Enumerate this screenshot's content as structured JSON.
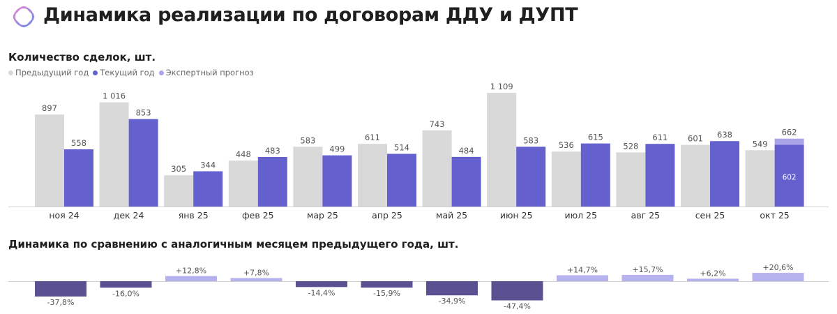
{
  "header": {
    "title": "Динамика реализации по договорам ДДУ и ДУПТ"
  },
  "colors": {
    "previous": "#d9d9d9",
    "current": "#6461cf",
    "forecast": "#a9a5e8",
    "negative": "#5b5092",
    "positive": "#b6b2ee",
    "label": "#555555"
  },
  "chart_data": [
    {
      "type": "bar",
      "title": "Количество сделок, шт.",
      "legend": [
        {
          "name": "Предыдущий год",
          "color": "#d9d9d9"
        },
        {
          "name": "Текущий год",
          "color": "#6461cf"
        },
        {
          "name": "Экспертный прогноз",
          "color": "#a9a5e8"
        }
      ],
      "categories": [
        "ноя 24",
        "дек 24",
        "янв 25",
        "фев 25",
        "мар 25",
        "апр 25",
        "май 25",
        "июн 25",
        "июл 25",
        "авг 25",
        "сен 25",
        "окт 25"
      ],
      "series": [
        {
          "name": "Предыдущий год",
          "values": [
            897,
            1016,
            305,
            448,
            583,
            611,
            743,
            1109,
            536,
            528,
            601,
            549
          ],
          "labels": [
            "897",
            "1 016",
            "305",
            "448",
            "583",
            "611",
            "743",
            "1 109",
            "536",
            "528",
            "601",
            "549"
          ]
        },
        {
          "name": "Текущий год",
          "values": [
            558,
            853,
            344,
            483,
            499,
            514,
            484,
            583,
            615,
            611,
            638,
            602
          ],
          "labels": [
            "558",
            "853",
            "344",
            "483",
            "499",
            "514",
            "484",
            "583",
            "615",
            "611",
            "638",
            "602"
          ]
        },
        {
          "name": "Экспертный прогноз",
          "values": [
            null,
            null,
            null,
            null,
            null,
            null,
            null,
            null,
            null,
            null,
            null,
            662
          ],
          "labels": [
            "",
            "",
            "",
            "",
            "",
            "",
            "",
            "",
            "",
            "",
            "",
            "662"
          ]
        }
      ],
      "ylim": [
        0,
        1109
      ]
    },
    {
      "type": "bar",
      "title": "Динамика по сравнению с аналогичным месяцем предыдущего года, шт.",
      "categories": [
        "ноя 24",
        "дек 24",
        "янв 25",
        "фев 25",
        "мар 25",
        "апр 25",
        "май 25",
        "июн 25",
        "июл 25",
        "авг 25",
        "сен 25",
        "окт 25"
      ],
      "values": [
        -37.8,
        -16.0,
        12.8,
        7.8,
        -14.4,
        -15.9,
        -34.9,
        -47.4,
        14.7,
        15.7,
        6.2,
        20.6
      ],
      "labels": [
        "-37,8%",
        "-16,0%",
        "+12,8%",
        "+7,8%",
        "-14,4%",
        "-15,9%",
        "-34,9%",
        "-47,4%",
        "+14,7%",
        "+15,7%",
        "+6,2%",
        "+20,6%"
      ]
    }
  ]
}
